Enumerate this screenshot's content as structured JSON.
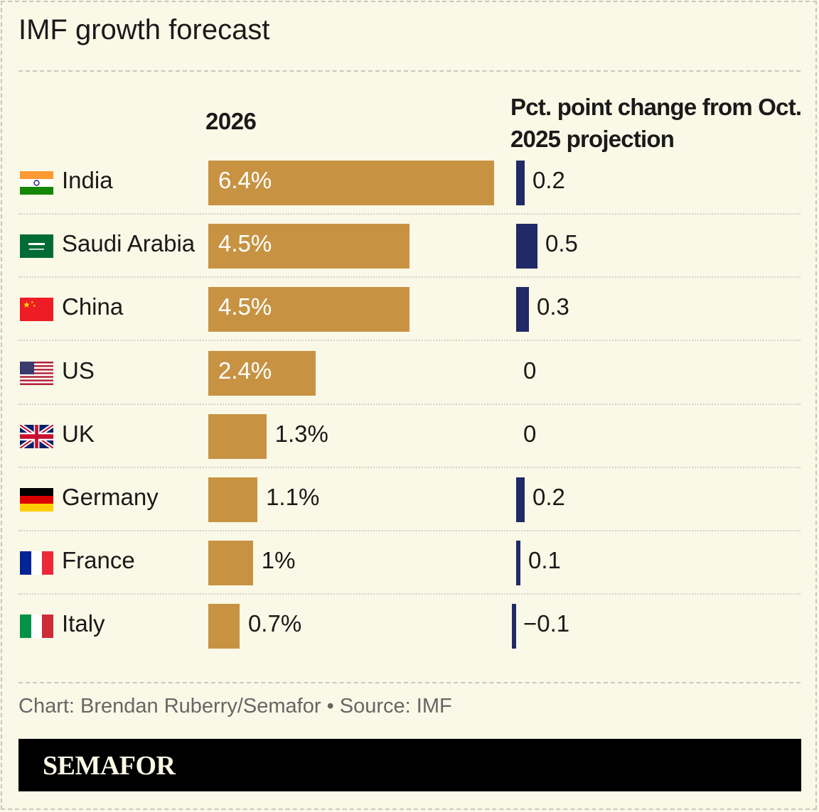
{
  "title": "IMF growth forecast",
  "footer": {
    "source": "Chart: Brendan Ruberry/Semafor • Source: IMF",
    "brand": "SEMAFOR"
  },
  "colors": {
    "growth_bar": "#c79343",
    "change_bar": "#1f2a66",
    "background": "#faf8e6"
  },
  "chart_data": {
    "type": "bar",
    "columns": [
      "2026",
      "Pct. point change from Oct. 2025 projection"
    ],
    "categories": [
      "India",
      "Saudi Arabia",
      "China",
      "US",
      "UK",
      "Germany",
      "France",
      "Italy"
    ],
    "flags": [
      "india-flag",
      "saudi-arabia-flag",
      "china-flag",
      "us-flag",
      "uk-flag",
      "germany-flag",
      "france-flag",
      "italy-flag"
    ],
    "series": [
      {
        "name": "2026",
        "values": [
          6.4,
          4.5,
          4.5,
          2.4,
          1.3,
          1.1,
          1,
          0.7
        ],
        "labels": [
          "6.4%",
          "4.5%",
          "4.5%",
          "2.4%",
          "1.3%",
          "1.1%",
          "1%",
          "0.7%"
        ]
      },
      {
        "name": "Pct. point change from Oct. 2025 projection",
        "values": [
          0.2,
          0.5,
          0.3,
          0,
          0,
          0.2,
          0.1,
          -0.1
        ],
        "labels": [
          "0.2",
          "0.5",
          "0.3",
          "0",
          "0",
          "0.2",
          "0.1",
          "−0.1"
        ]
      }
    ]
  }
}
